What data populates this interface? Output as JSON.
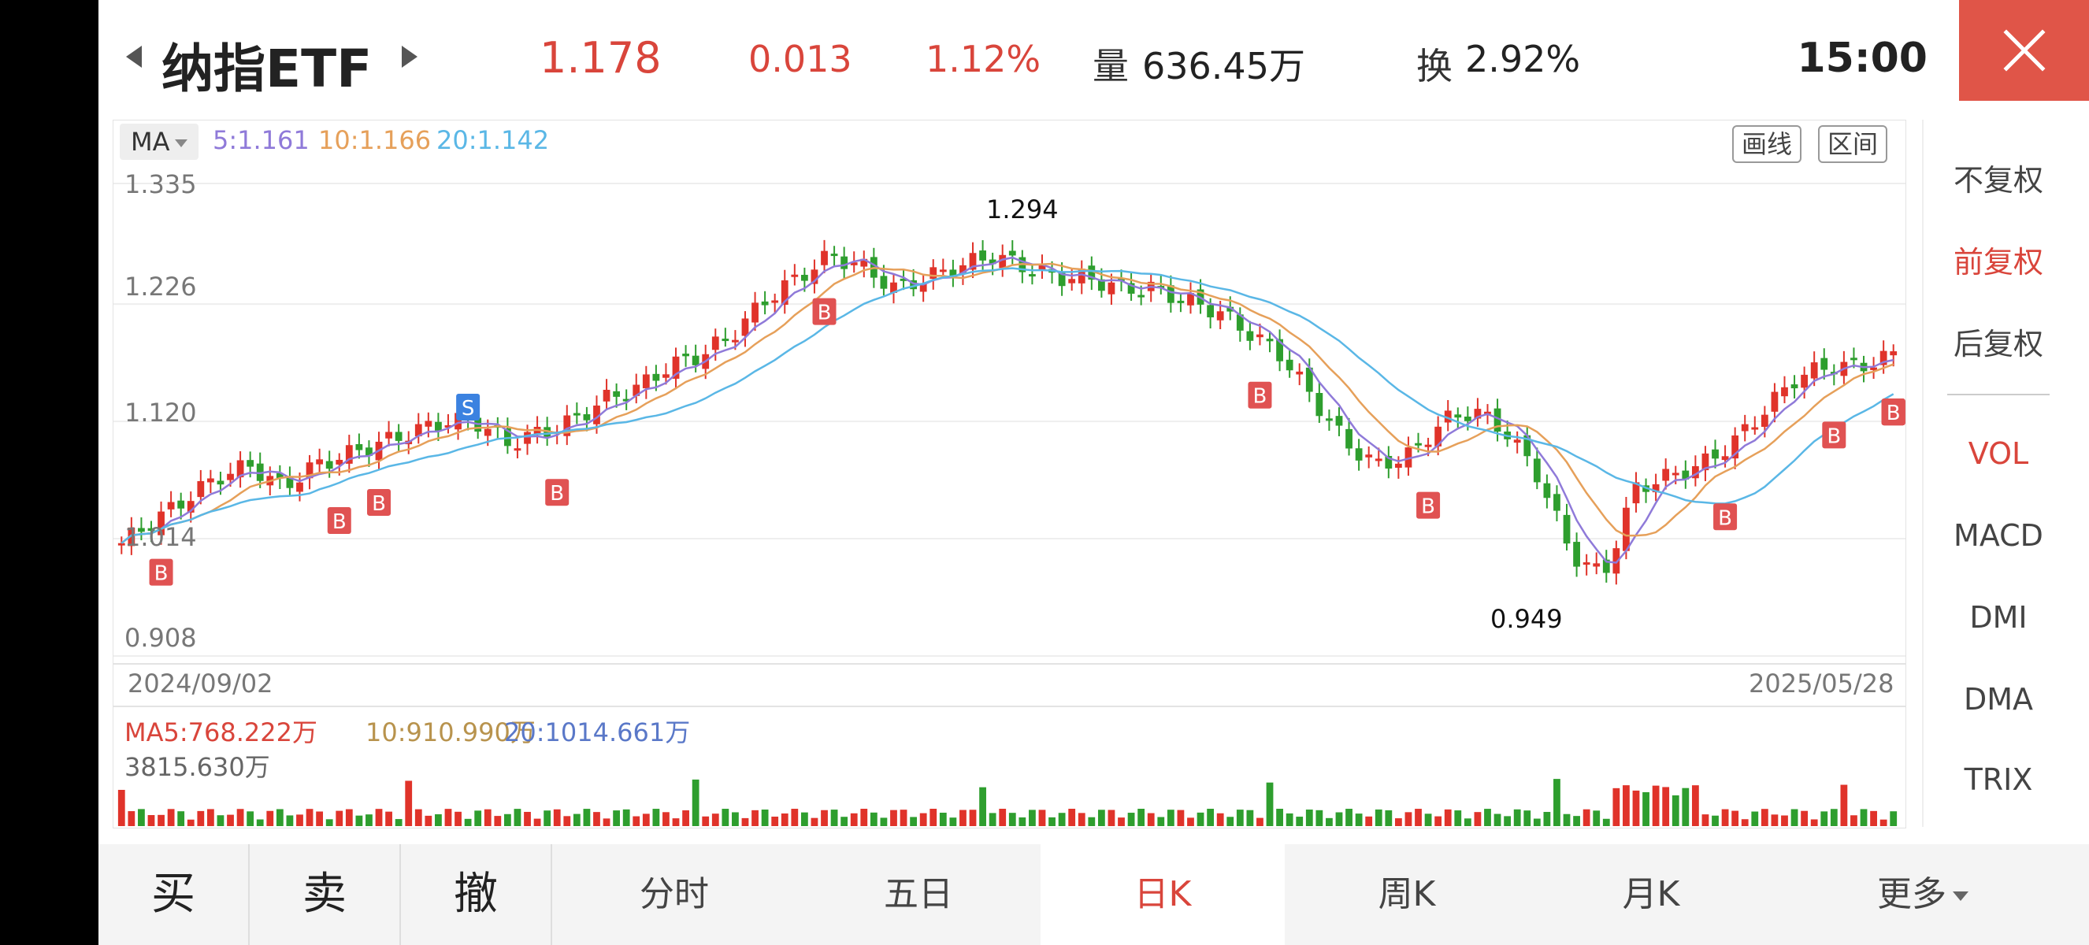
{
  "header": {
    "title": "纳指ETF",
    "price": "1.178",
    "change": "0.013",
    "change_pct": "1.12%",
    "volume_label": "量",
    "volume_value": "636.45万",
    "turnover_label": "换",
    "turnover_value": "2.92%",
    "time": "15:00"
  },
  "chart": {
    "ma_selector": "MA",
    "ma_legend": [
      {
        "label": "5:1.161",
        "color": "#8f7ad9"
      },
      {
        "label": "10:1.166",
        "color": "#e6a05a"
      },
      {
        "label": "20:1.142",
        "color": "#5ab7e6"
      }
    ],
    "tool_draw": "画线",
    "tool_range": "区间",
    "y_ticks": [
      "1.335",
      "1.226",
      "1.120",
      "1.014",
      "0.908"
    ],
    "start_date": "2024/09/02",
    "end_date": "2025/05/28",
    "high_label": "1.294",
    "low_label": "0.949",
    "colors": {
      "up": "#e0332a",
      "down": "#2e9e2e",
      "buy": "#e05252",
      "sell": "#3b82e0"
    }
  },
  "chart_data": {
    "type": "candlestick",
    "ylim": [
      0.908,
      1.335
    ],
    "y_ticks": [
      1.335,
      1.226,
      1.12,
      1.014,
      0.908
    ],
    "x_range": [
      "2024/09/02",
      "2025/05/28"
    ],
    "high": 1.294,
    "low": 0.949,
    "ma": {
      "MA5": 1.161,
      "MA10": 1.166,
      "MA20": 1.142
    },
    "close_approx": [
      1.01,
      1.03,
      1.05,
      1.07,
      1.08,
      1.06,
      1.08,
      1.09,
      1.1,
      1.11,
      1.12,
      1.12,
      1.1,
      1.11,
      1.12,
      1.14,
      1.15,
      1.17,
      1.18,
      1.2,
      1.23,
      1.25,
      1.27,
      1.26,
      1.24,
      1.25,
      1.26,
      1.27,
      1.26,
      1.25,
      1.25,
      1.24,
      1.24,
      1.23,
      1.22,
      1.2,
      1.18,
      1.14,
      1.1,
      1.08,
      1.09,
      1.12,
      1.13,
      1.11,
      1.07,
      1.0,
      0.98,
      1.06,
      1.07,
      1.08,
      1.1,
      1.13,
      1.16,
      1.17,
      1.17,
      1.18
    ]
  },
  "volume": {
    "ma5": "MA5:768.222万",
    "ma10": "10:910.990万",
    "ma20": "20:1014.661万",
    "max": "3815.630万"
  },
  "right_panel": {
    "items": [
      "不复权",
      "前复权",
      "后复权"
    ],
    "active": "前复权",
    "indicators": [
      "VOL",
      "MACD",
      "DMI",
      "DMA",
      "TRIX"
    ],
    "active_indicator": "VOL"
  },
  "bottom_bar": {
    "buy": "买",
    "sell": "卖",
    "cancel": "撤",
    "tabs": [
      "分时",
      "五日",
      "日K",
      "周K",
      "月K",
      "更多"
    ],
    "selected": "日K"
  }
}
